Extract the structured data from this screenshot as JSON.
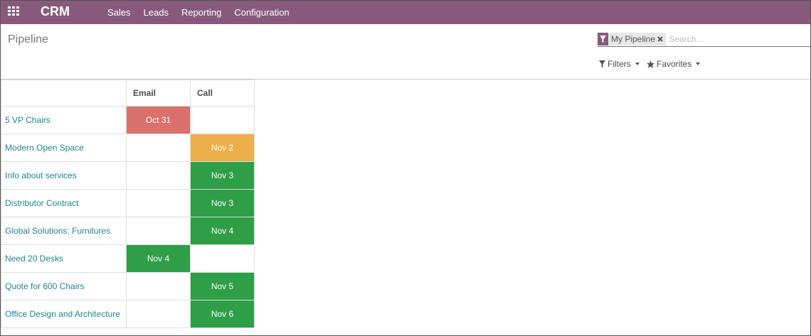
{
  "navbar": {
    "app": "CRM",
    "menu": [
      "Sales",
      "Leads",
      "Reporting",
      "Configuration"
    ]
  },
  "control_panel": {
    "title": "Pipeline",
    "facet": "My Pipeline",
    "search_placeholder": "Search...",
    "filters": "Filters",
    "favorites": "Favorites"
  },
  "table": {
    "columns": [
      "Email",
      "Call"
    ],
    "rows": [
      {
        "name": "5 VP Chairs",
        "cells": [
          {
            "label": "Oct 31",
            "color": "#d9716a"
          },
          null
        ]
      },
      {
        "name": "Modern Open Space",
        "cells": [
          null,
          {
            "label": "Nov 2",
            "color": "#edaf49"
          }
        ]
      },
      {
        "name": "Info about services",
        "cells": [
          null,
          {
            "label": "Nov 3",
            "color": "#2e9e47"
          }
        ]
      },
      {
        "name": "Distributor Contract",
        "cells": [
          null,
          {
            "label": "Nov 3",
            "color": "#2e9e47"
          }
        ]
      },
      {
        "name": "Global Solutions: Furnitures",
        "cells": [
          null,
          {
            "label": "Nov 4",
            "color": "#2e9e47"
          }
        ]
      },
      {
        "name": "Need 20 Desks",
        "cells": [
          {
            "label": "Nov 4",
            "color": "#2e9e47"
          },
          null
        ]
      },
      {
        "name": "Quote for 600 Chairs",
        "cells": [
          null,
          {
            "label": "Nov 5",
            "color": "#2e9e47"
          }
        ]
      },
      {
        "name": "Office Design and Architecture",
        "cells": [
          null,
          {
            "label": "Nov 6",
            "color": "#2e9e47"
          }
        ]
      }
    ]
  }
}
